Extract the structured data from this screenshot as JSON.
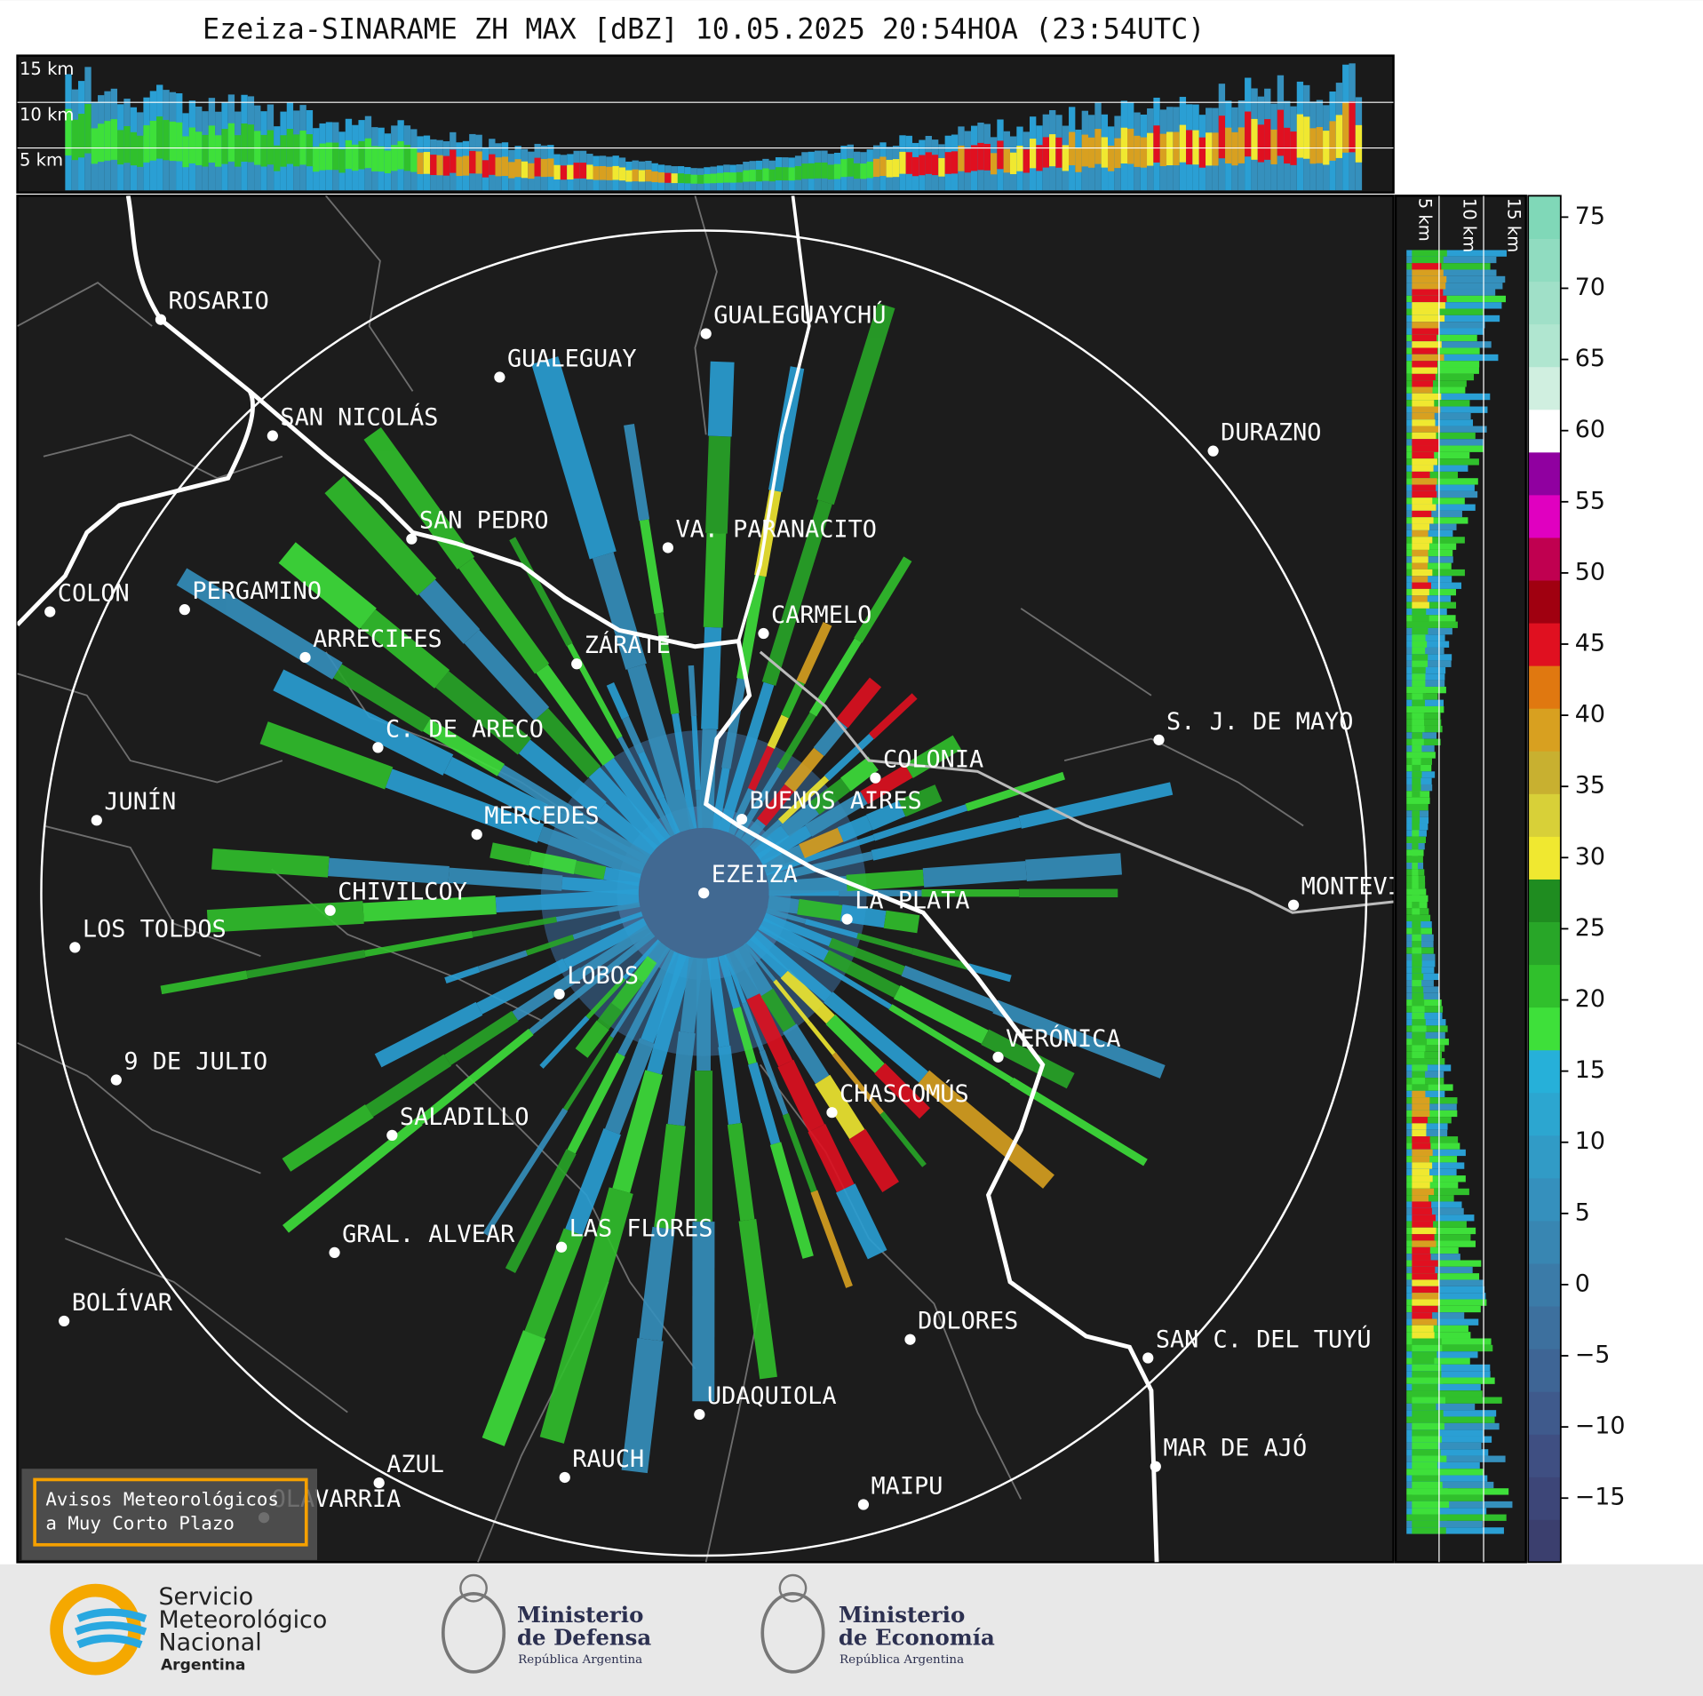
{
  "title": "Ezeiza-SINARAME ZH MAX [dBZ] 10.05.2025 20:54HOA (23:54UTC)",
  "top_panel": {
    "height_labels": [
      "15 km",
      "10 km",
      "5 km"
    ]
  },
  "side_panel": {
    "height_labels": [
      "5 km",
      "10 km",
      "15 km"
    ]
  },
  "map": {
    "cities": [
      "ROSARIO",
      "GUALEGUAYCHÚ",
      "GUALEGUAY",
      "SAN NICOLÁS",
      "DURAZNO",
      "SAN PEDRO",
      "VA. PARANACITO",
      "COLON",
      "PERGAMINO",
      "CARMELO",
      "ARRECIFES",
      "ZÁRATE",
      "C. DE ARECO",
      "S. J. DE MAYO",
      "COLONIA",
      "JUNÍN",
      "BUENOS AIRES",
      "MERCEDES",
      "EZEIZA",
      "MONTEVIDEO",
      "CHIVILCOY",
      "LA PLATA",
      "LOS TOLDOS",
      "LOBOS",
      "VERÓNICA",
      "9 DE JULIO",
      "CHASCOMÚS",
      "SALADILLO",
      "GRAL. ALVEAR",
      "LAS FLORES",
      "BOLÍVAR",
      "DOLORES",
      "SAN C. DEL TUYÚ",
      "UDAQUIOLA",
      "MAR DE AJÓ",
      "AZUL",
      "RAUCH",
      "OLAVARRÍA",
      "MAIPU"
    ]
  },
  "warning_box": {
    "lines": [
      "Avisos Meteorológicos",
      "a Muy Corto Plazo"
    ]
  },
  "colorbar": {
    "lim": [
      -19.5,
      76.5
    ],
    "ticks": [
      75,
      70,
      65,
      60,
      55,
      50,
      45,
      40,
      35,
      30,
      25,
      20,
      15,
      10,
      5,
      0,
      {
        "value": -5,
        "label": "−5"
      },
      {
        "value": -10,
        "label": "−10"
      },
      {
        "value": -15,
        "label": "−15"
      }
    ],
    "colors": [
      "#3b3f6e",
      "#3d4678",
      "#3f4f82",
      "#3f5a8c",
      "#3e6595",
      "#3d709e",
      "#3b7ba8",
      "#3886b2",
      "#3590bd",
      "#319bc6",
      "#2ca6d0",
      "#26b0d9",
      "#3ee03a",
      "#30c02c",
      "#28a628",
      "#1f8c20",
      "#f0e830",
      "#d8d038",
      "#c8b030",
      "#d8a020",
      "#e07810",
      "#e01020",
      "#a00010",
      "#c00050",
      "#e000c0",
      "#9000a0",
      "#ffffff",
      "#d0efe0",
      "#b0e6d0",
      "#a0e0c8",
      "#90dcc0",
      "#80d8b8"
    ]
  },
  "footer": {
    "smn": [
      "Servicio",
      "Meteorológico",
      "Nacional",
      "Argentina"
    ],
    "defensa": [
      "Ministerio",
      "de Defensa",
      "República Argentina"
    ],
    "economia": [
      "Ministerio",
      "de Economía",
      "República Argentina"
    ]
  }
}
